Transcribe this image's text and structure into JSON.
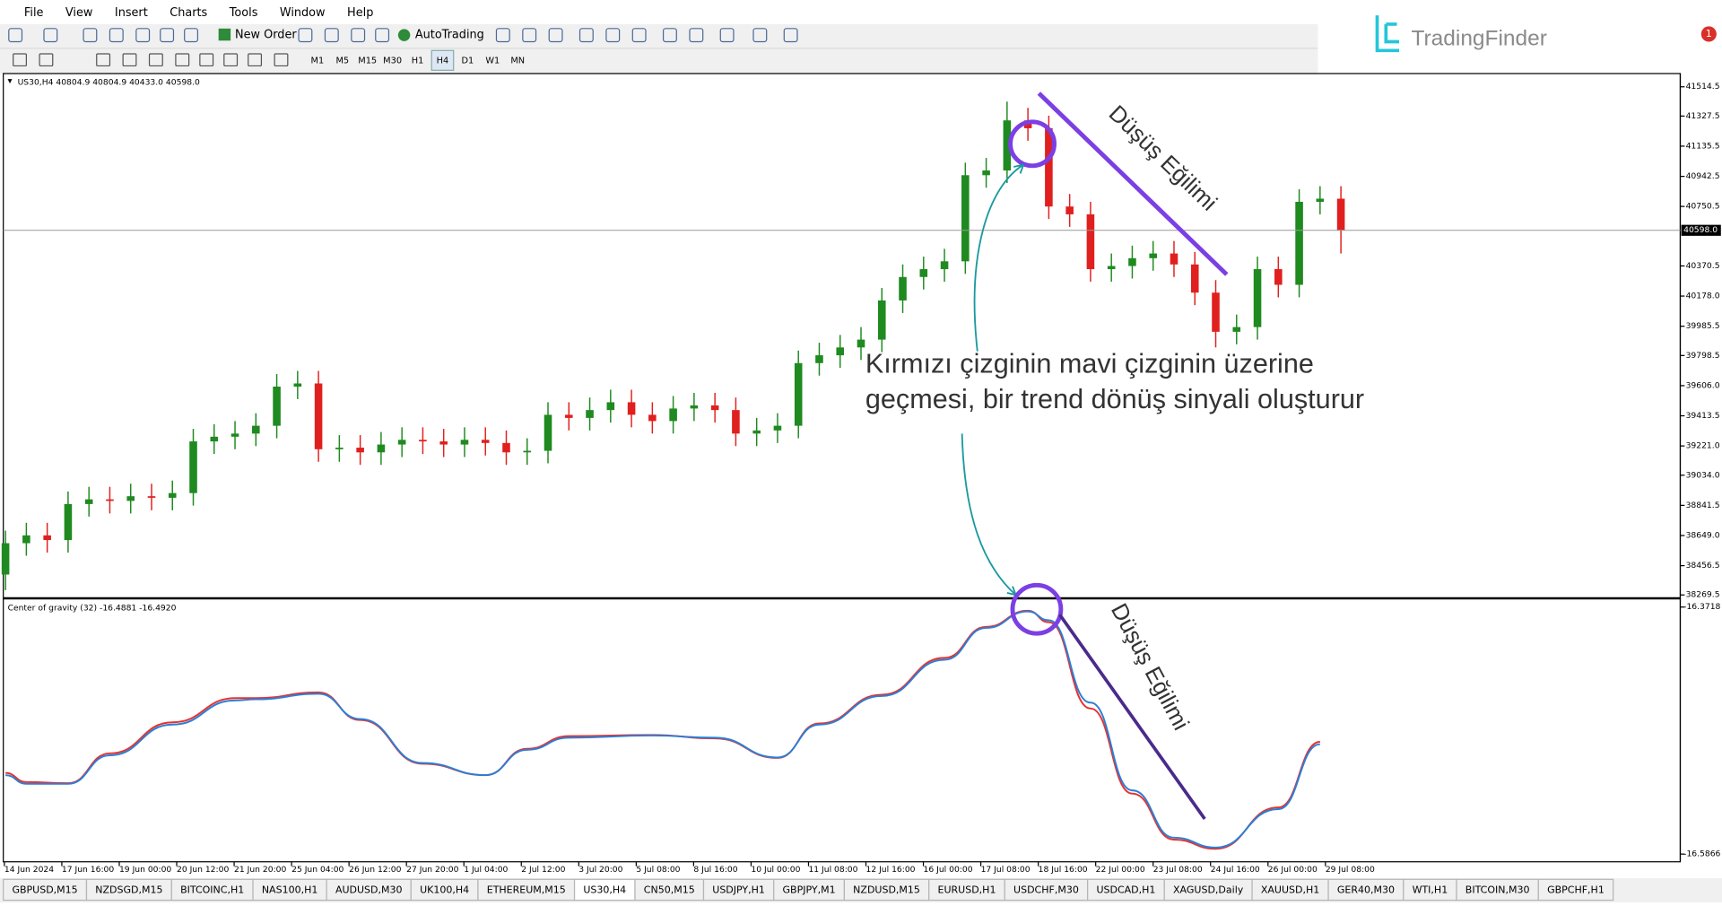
{
  "menu": [
    "File",
    "View",
    "Insert",
    "Charts",
    "Tools",
    "Window",
    "Help"
  ],
  "toolbar": {
    "new_order": "New Order",
    "auto_trading": "AutoTrading",
    "timeframes": [
      "M1",
      "M5",
      "M15",
      "M30",
      "H1",
      "H4",
      "D1",
      "W1",
      "MN"
    ]
  },
  "logo": "TradingFinder",
  "badge": "1",
  "chart_header": "US30,H4  40804.9 40804.9 40433.0 40598.0",
  "indicator_header": "Center of gravity (32) -16.4881 -16.4920",
  "annotations": {
    "trend_top": "Düşüş Eğilimi",
    "trend_bottom": "Düşüş Eğilimi",
    "note_line1": "Kırmızı çizginin mavi çizginin üzerine",
    "note_line2": "geçmesi, bir trend dönüş sinyali oluşturur"
  },
  "time_labels": [
    "14 Jun 2024",
    "17 Jun 16:00",
    "19 Jun 00:00",
    "20 Jun 12:00",
    "21 Jun 20:00",
    "25 Jun 04:00",
    "26 Jun 12:00",
    "27 Jun 20:00",
    "1 Jul 04:00",
    "2 Jul 12:00",
    "3 Jul 20:00",
    "5 Jul 08:00",
    "8 Jul 16:00",
    "10 Jul 00:00",
    "11 Jul 08:00",
    "12 Jul 16:00",
    "16 Jul 00:00",
    "17 Jul 08:00",
    "18 Jul 16:00",
    "22 Jul 00:00",
    "23 Jul 08:00",
    "24 Jul 16:00",
    "26 Jul 00:00",
    "29 Jul 08:00"
  ],
  "tabs": [
    "GBPUSD,M15",
    "NZDSGD,M15",
    "BITCOINC,H1",
    "NAS100,H1",
    "AUDUSD,M30",
    "UK100,H4",
    "ETHEREUM,M15",
    "US30,H4",
    "CN50,M15",
    "USDJPY,H1",
    "GBPJPY,M1",
    "NZDUSD,M15",
    "EURUSD,H1",
    "USDCHF,M30",
    "USDCAD,H1",
    "XAGUSD,Daily",
    "XAUUSD,H1",
    "GER40,M30",
    "WTI,H1",
    "BITCOIN,M30",
    "GBPCHF,H1"
  ],
  "active_tab": "US30,H4",
  "chart_data": [
    {
      "type": "candlestick",
      "up_color": "#1f8a1f",
      "down_color": "#e0201e",
      "open": [
        38400,
        38600,
        38650,
        38620,
        38850,
        38880,
        38870,
        38900,
        38890,
        38920,
        39250,
        39280,
        39300,
        39350,
        39600,
        39620,
        39200,
        39210,
        39180,
        39230,
        39260,
        39250,
        39230,
        39260,
        39240,
        39180,
        39190,
        39420,
        39400,
        39450,
        39500,
        39420,
        39380,
        39460,
        39480,
        39450,
        39300,
        39320,
        39350,
        39750,
        39800,
        39850,
        39900,
        40150,
        40300,
        40350,
        40400,
        40950,
        40980,
        41300,
        41250,
        40750,
        40700,
        40350,
        40370,
        40420,
        40450,
        40380,
        40200,
        39950,
        39980,
        40350,
        40250,
        40780,
        40800
      ],
      "high": [
        38680,
        38730,
        38730,
        38930,
        38960,
        38960,
        38980,
        38980,
        39000,
        39330,
        39360,
        39380,
        39430,
        39680,
        39700,
        39700,
        39290,
        39290,
        39310,
        39340,
        39340,
        39330,
        39340,
        39340,
        39320,
        39270,
        39500,
        39500,
        39530,
        39580,
        39580,
        39500,
        39540,
        39560,
        39560,
        39530,
        39400,
        39430,
        39830,
        39880,
        39930,
        39980,
        40230,
        40380,
        40430,
        40480,
        41030,
        41060,
        41420,
        41380,
        41330,
        40830,
        40780,
        40450,
        40500,
        40530,
        40530,
        40460,
        40280,
        40060,
        40430,
        40430,
        40860,
        40880,
        40880
      ],
      "low": [
        38300,
        38520,
        38540,
        38540,
        38770,
        38790,
        38790,
        38810,
        38810,
        38840,
        39170,
        39200,
        39220,
        39270,
        39520,
        39120,
        39120,
        39100,
        39100,
        39150,
        39170,
        39150,
        39150,
        39160,
        39100,
        39100,
        39110,
        39320,
        39320,
        39370,
        39340,
        39300,
        39300,
        39380,
        39370,
        39220,
        39220,
        39240,
        39270,
        39670,
        39720,
        39770,
        39820,
        40070,
        40220,
        40270,
        40320,
        40870,
        40900,
        41170,
        40670,
        40620,
        40270,
        40270,
        40290,
        40340,
        40300,
        40120,
        39850,
        39870,
        39900,
        40170,
        40170,
        40700,
        40450
      ],
      "close": [
        38600,
        38650,
        38620,
        38850,
        38880,
        38870,
        38900,
        38890,
        38920,
        39250,
        39280,
        39300,
        39350,
        39600,
        39620,
        39200,
        39210,
        39180,
        39230,
        39260,
        39250,
        39230,
        39260,
        39240,
        39180,
        39190,
        39420,
        39400,
        39450,
        39500,
        39420,
        39380,
        39460,
        39480,
        39450,
        39300,
        39320,
        39350,
        39750,
        39800,
        39850,
        39900,
        40150,
        40300,
        40350,
        40400,
        40950,
        40980,
        41300,
        41250,
        40750,
        40700,
        40350,
        40370,
        40420,
        40450,
        40380,
        40200,
        39950,
        39980,
        40350,
        40250,
        40780,
        40800,
        40598
      ],
      "ylim": [
        38248,
        41599
      ],
      "yticks": [
        41514.5,
        41327.5,
        41135.5,
        40942.5,
        40750.5,
        40370.5,
        {
          "value": 40178,
          "label": "40178.0"
        },
        39985.5,
        39798.5,
        {
          "value": 39606,
          "label": "39606.0"
        },
        39413.5,
        {
          "value": 39221,
          "label": "39221.0"
        },
        {
          "value": 39034,
          "label": "39034.0"
        },
        38841.5,
        {
          "value": 38649,
          "label": "38649.0"
        },
        38456.5,
        38269.5
      ],
      "last_price": {
        "value": 40598,
        "label": "40598.0"
      }
    },
    {
      "type": "line",
      "x": [
        0,
        1,
        3,
        5,
        8,
        11,
        12,
        15,
        17,
        20,
        23,
        25,
        27,
        31,
        34,
        37,
        39,
        42,
        45,
        47,
        49,
        50,
        52,
        54,
        56,
        58,
        61,
        63
      ],
      "xlim": [
        0,
        64
      ],
      "series": [
        {
          "color": "#e8312e",
          "values": [
            -16.516,
            -16.524,
            -16.525,
            -16.499,
            -16.472,
            -16.451,
            -16.451,
            -16.446,
            -16.47,
            -16.508,
            -16.518,
            -16.495,
            -16.484,
            -16.483,
            -16.486,
            -16.503,
            -16.473,
            -16.448,
            -16.416,
            -16.389,
            -16.375,
            -16.385,
            -16.46,
            -16.534,
            -16.574,
            -16.582,
            -16.546,
            -16.489
          ]
        },
        {
          "color": "#2a7fd8",
          "values": [
            -16.518,
            -16.5255,
            -16.5255,
            -16.5007,
            -16.474,
            -16.453,
            -16.452,
            -16.4472,
            -16.4692,
            -16.5074,
            -16.5179,
            -16.4959,
            -16.4854,
            -16.4835,
            -16.4854,
            -16.5026,
            -16.474,
            -16.4491,
            -16.4176,
            -16.3899,
            -16.3756,
            -16.3833,
            -16.4549,
            -16.5312,
            -16.5723,
            -16.5809,
            -16.5475,
            -16.4911
          ]
        }
      ],
      "ylim": [
        -16.5933,
        -16.3661
      ],
      "yticks": [
        -16.3718,
        -16.5866
      ]
    }
  ]
}
